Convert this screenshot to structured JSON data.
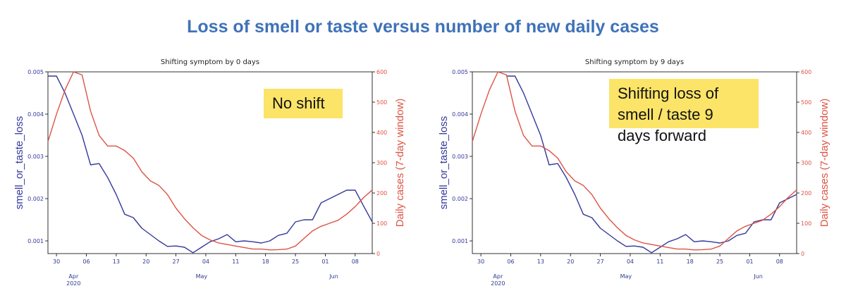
{
  "headline": "Loss of smell or taste versus number of new daily cases",
  "colors": {
    "headline": "#3f72b8",
    "symptom": "#34399a",
    "cases": "#dd5344",
    "callout": "#fbe468"
  },
  "chart_data": [
    {
      "type": "line",
      "title": "Shifting symptom by 0 days",
      "callout": "No shift",
      "ylabel_left": "smell_or_taste_loss",
      "ylabel_right": "Daily cases (7-day window)",
      "x_ticks": [
        "30",
        "06",
        "13",
        "20",
        "27",
        "04",
        "11",
        "18",
        "25",
        "01",
        "08"
      ],
      "x_month_labels": [
        {
          "label": "Apr",
          "year": "2020",
          "day": 2
        },
        {
          "label": "May",
          "year": "",
          "day": 32
        },
        {
          "label": "Jun",
          "year": "",
          "day": 63
        }
      ],
      "x_range_day": [
        -4,
        72
      ],
      "ylim_left": [
        0.0007,
        0.005
      ],
      "ylim_right": [
        0,
        600
      ],
      "yticks_left": [
        "0.001",
        "0.002",
        "0.003",
        "0.004",
        "0.005"
      ],
      "yticks_left_values": [
        0.001,
        0.002,
        0.003,
        0.004,
        0.005
      ],
      "yticks_right": [
        "0",
        "100",
        "200",
        "300",
        "400",
        "500",
        "600"
      ],
      "yticks_right_values": [
        0,
        100,
        200,
        300,
        400,
        500,
        600
      ],
      "series": [
        {
          "name": "smell_or_taste_loss",
          "axis": "left",
          "x": [
            -4,
            -2,
            0,
            2,
            4,
            6,
            8,
            10,
            12,
            14,
            16,
            18,
            20,
            22,
            24,
            26,
            28,
            30,
            32,
            34,
            36,
            38,
            40,
            42,
            44,
            46,
            48,
            50,
            52,
            54,
            56,
            58,
            60,
            62,
            64,
            66,
            68,
            70,
            72
          ],
          "y": [
            0.0049,
            0.0049,
            0.0045,
            0.004,
            0.0035,
            0.0028,
            0.00283,
            0.0025,
            0.0021,
            0.00163,
            0.00155,
            0.0013,
            0.00115,
            0.001,
            0.00087,
            0.00088,
            0.00085,
            0.00072,
            0.00085,
            0.00098,
            0.00105,
            0.00115,
            0.00098,
            0.001,
            0.00098,
            0.00095,
            0.001,
            0.00113,
            0.00118,
            0.00145,
            0.0015,
            0.0015,
            0.0019,
            0.002,
            0.0021,
            0.0022,
            0.0022,
            0.00182,
            0.00145
          ]
        },
        {
          "name": "Daily cases (7-day window)",
          "axis": "right",
          "x": [
            -4,
            -2,
            0,
            2,
            4,
            6,
            8,
            10,
            12,
            14,
            16,
            18,
            20,
            22,
            24,
            26,
            28,
            30,
            32,
            34,
            36,
            38,
            40,
            42,
            44,
            46,
            48,
            50,
            52,
            54,
            56,
            58,
            60,
            62,
            64,
            66,
            68,
            70,
            72
          ],
          "y": [
            370,
            460,
            540,
            600,
            590,
            470,
            390,
            355,
            355,
            340,
            315,
            270,
            240,
            225,
            195,
            150,
            115,
            85,
            60,
            45,
            35,
            30,
            25,
            20,
            15,
            15,
            12,
            13,
            15,
            25,
            50,
            75,
            90,
            100,
            110,
            130,
            155,
            185,
            210
          ]
        }
      ]
    },
    {
      "type": "line",
      "title": "Shifting symptom by 9 days",
      "callout": "Shifting loss of smell / taste 9 days forward",
      "ylabel_left": "smell_or_taste_loss",
      "ylabel_right": "Daily cases (7-day window)",
      "x_ticks": [
        "30",
        "06",
        "13",
        "20",
        "27",
        "04",
        "11",
        "18",
        "25",
        "01",
        "08"
      ],
      "x_month_labels": [
        {
          "label": "Apr",
          "year": "2020",
          "day": 2
        },
        {
          "label": "May",
          "year": "",
          "day": 32
        },
        {
          "label": "Jun",
          "year": "",
          "day": 63
        }
      ],
      "x_range_day": [
        -4,
        72
      ],
      "ylim_left": [
        0.0007,
        0.005
      ],
      "ylim_right": [
        0,
        600
      ],
      "yticks_left": [
        "0.001",
        "0.002",
        "0.003",
        "0.004",
        "0.005"
      ],
      "yticks_left_values": [
        0.001,
        0.002,
        0.003,
        0.004,
        0.005
      ],
      "yticks_right": [
        "0",
        "100",
        "200",
        "300",
        "400",
        "500",
        "600"
      ],
      "yticks_right_values": [
        0,
        100,
        200,
        300,
        400,
        500,
        600
      ],
      "series": [
        {
          "name": "smell_or_taste_loss",
          "axis": "left",
          "x": [
            4,
            6,
            8,
            10,
            12,
            14,
            16,
            18,
            20,
            22,
            24,
            26,
            28,
            30,
            32,
            34,
            36,
            38,
            40,
            42,
            44,
            46,
            48,
            50,
            52,
            54,
            56,
            58,
            60,
            62,
            64,
            66,
            68,
            70,
            72
          ],
          "y": [
            0.0049,
            0.0049,
            0.0045,
            0.004,
            0.0035,
            0.0028,
            0.00283,
            0.0025,
            0.0021,
            0.00163,
            0.00155,
            0.0013,
            0.00115,
            0.001,
            0.00087,
            0.00088,
            0.00085,
            0.00072,
            0.00085,
            0.00098,
            0.00105,
            0.00115,
            0.00098,
            0.001,
            0.00098,
            0.00095,
            0.001,
            0.00113,
            0.00118,
            0.00145,
            0.0015,
            0.0015,
            0.0019,
            0.002,
            0.0021
          ]
        },
        {
          "name": "Daily cases (7-day window)",
          "axis": "right",
          "x": [
            -4,
            -2,
            0,
            2,
            4,
            6,
            8,
            10,
            12,
            14,
            16,
            18,
            20,
            22,
            24,
            26,
            28,
            30,
            32,
            34,
            36,
            38,
            40,
            42,
            44,
            46,
            48,
            50,
            52,
            54,
            56,
            58,
            60,
            62,
            64,
            66,
            68,
            70,
            72
          ],
          "y": [
            370,
            460,
            540,
            600,
            590,
            470,
            390,
            355,
            355,
            340,
            315,
            270,
            240,
            225,
            195,
            150,
            115,
            85,
            60,
            45,
            35,
            30,
            25,
            20,
            15,
            15,
            12,
            13,
            15,
            25,
            50,
            75,
            90,
            100,
            110,
            130,
            155,
            185,
            210
          ]
        }
      ]
    }
  ]
}
